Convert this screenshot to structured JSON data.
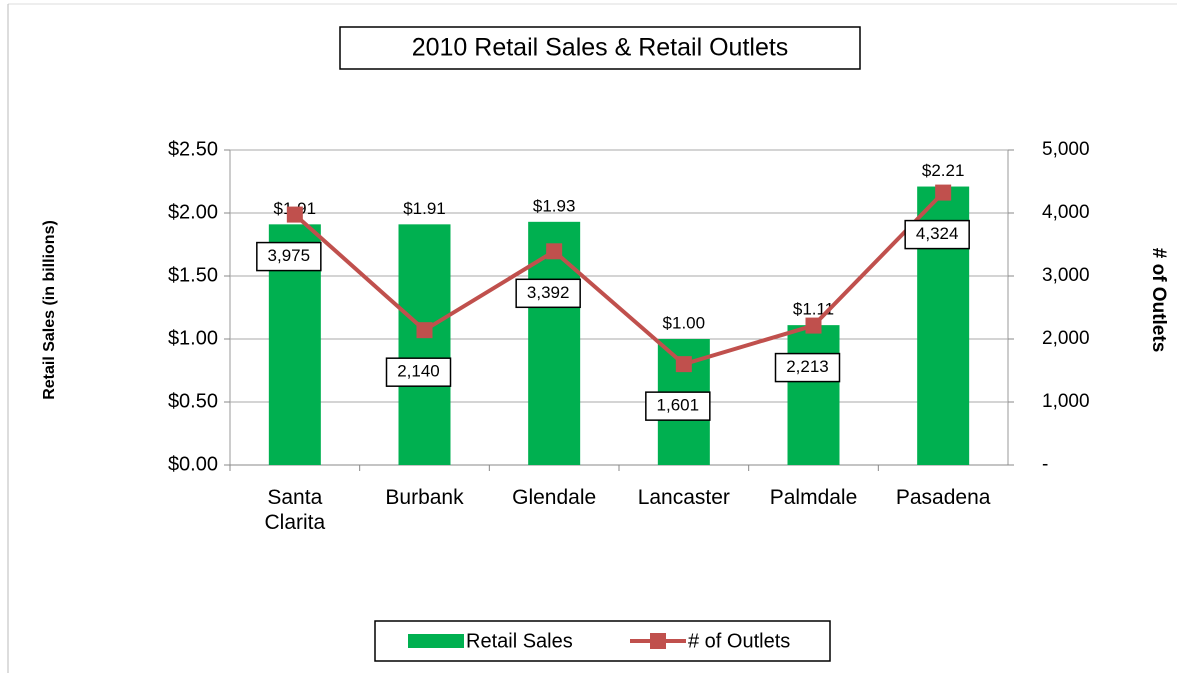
{
  "chart_data": {
    "type": "bar",
    "title": "2010 Retail Sales & Retail Outlets",
    "y_label": "Retail Sales (in billions)",
    "y2_label": "# of Outlets",
    "categories": [
      "Santa Clarita",
      "Burbank",
      "Glendale",
      "Lancaster",
      "Palmdale",
      "Pasadena"
    ],
    "series": [
      {
        "name": "Retail Sales",
        "type": "bar",
        "color": "#00b050",
        "values": [
          1.91,
          1.91,
          1.93,
          1.0,
          1.11,
          2.21
        ],
        "value_labels": [
          "$1.91",
          "$1.91",
          "$1.93",
          "$1.00",
          "$1.11",
          "$2.21"
        ]
      },
      {
        "name": "# of Outlets",
        "type": "line",
        "axis": "y2",
        "color": "#c0504d",
        "values": [
          3975,
          2140,
          3392,
          1601,
          2213,
          4324
        ],
        "value_labels": [
          "3,975",
          "2,140",
          "3,392",
          "1,601",
          "2,213",
          "4,324"
        ]
      }
    ],
    "ylim": [
      0,
      2.5
    ],
    "yticks": [
      {
        "value": 0,
        "label": "$0.00"
      },
      {
        "value": 0.5,
        "label": "$0.50"
      },
      {
        "value": 1,
        "label": "$1.00"
      },
      {
        "value": 1.5,
        "label": "$1.50"
      },
      {
        "value": 2,
        "label": "$2.00"
      },
      {
        "value": 2.5,
        "label": "$2.50"
      }
    ],
    "y2lim": [
      0,
      5000
    ],
    "y2ticks": [
      {
        "value": 0,
        "label": "-"
      },
      {
        "value": 1000,
        "label": "1,000"
      },
      {
        "value": 2000,
        "label": "2,000"
      },
      {
        "value": 3000,
        "label": "3,000"
      },
      {
        "value": 4000,
        "label": "4,000"
      },
      {
        "value": 5000,
        "label": "5,000"
      }
    ],
    "grid": true,
    "legend": "bottom"
  }
}
